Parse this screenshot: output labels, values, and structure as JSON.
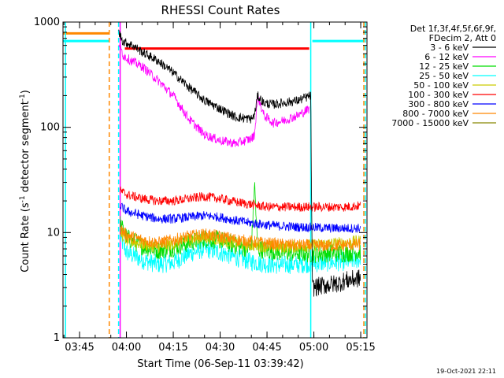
{
  "chart_data": {
    "type": "line",
    "title": "RHESSI Count Rates",
    "xlabel": "Start Time (06-Sep-11 03:39:42)",
    "ylabel_main": "Count Rate (s",
    "ylabel_sup": "-1",
    "ylabel_mid": " detector segment",
    "ylabel_end": ")",
    "y_scale": "log",
    "ylim": [
      1,
      1000
    ],
    "xlim": [
      "03:39:42",
      "05:17:00"
    ],
    "x_tick_labels": [
      "03:45",
      "04:00",
      "04:15",
      "04:30",
      "04:45",
      "05:00",
      "05:15"
    ],
    "y_tick_labels": [
      "1",
      "10",
      "100",
      "1000"
    ],
    "legend_header": [
      "Det 1f,3f,4f,5f,6f,9f,",
      "FDecim 2, Att 0"
    ],
    "legend_position": "top-right",
    "grid": false,
    "timestamp": "19-Oct-2021 22:11",
    "series": [
      {
        "name": "3 - 6 keV",
        "color": "#000000",
        "x": [
          "03:57:30",
          "03:59",
          "04:02",
          "04:05",
          "04:10",
          "04:15",
          "04:20",
          "04:25",
          "04:30",
          "04:35",
          "04:40",
          "04:41",
          "04:42",
          "04:44",
          "04:47",
          "04:50",
          "04:55",
          "04:59:00",
          "04:59:30",
          "05:02",
          "05:05",
          "05:08",
          "05:10",
          "05:13",
          "05:15"
        ],
        "values": [
          800,
          650,
          600,
          520,
          430,
          330,
          240,
          180,
          150,
          125,
          120,
          130,
          200,
          170,
          165,
          170,
          180,
          200,
          3.0,
          3.1,
          3.2,
          3.3,
          3.5,
          3.6,
          3.7
        ]
      },
      {
        "name": "6 - 12 keV",
        "color": "#ff00ff",
        "x": [
          "03:57:30",
          "03:59",
          "04:02",
          "04:05",
          "04:10",
          "04:15",
          "04:20",
          "04:25",
          "04:30",
          "04:35",
          "04:40",
          "04:41",
          "04:42",
          "04:44",
          "04:47",
          "04:50",
          "04:55",
          "04:58:30"
        ],
        "values": [
          650,
          480,
          420,
          380,
          280,
          200,
          120,
          85,
          75,
          70,
          78,
          85,
          200,
          130,
          110,
          115,
          130,
          150
        ]
      },
      {
        "name": "12 - 25 keV",
        "color": "#00dd00",
        "x": [
          "03:58:00",
          "04:00",
          "04:05",
          "04:10",
          "04:15",
          "04:20",
          "04:25",
          "04:30",
          "04:35",
          "04:40",
          "04:41",
          "04:42",
          "04:45",
          "04:50",
          "04:55",
          "05:00",
          "05:05",
          "05:10",
          "05:15"
        ],
        "values": [
          12,
          9,
          7.5,
          6.8,
          7.2,
          8,
          8.8,
          8.5,
          7.5,
          7,
          30,
          7,
          6.8,
          6.5,
          6.4,
          6.3,
          6.4,
          6.4,
          6.6
        ]
      },
      {
        "name": "25 - 50 keV",
        "color": "#00ffff",
        "x": [
          "03:58:00",
          "04:00",
          "04:05",
          "04:10",
          "04:15",
          "04:20",
          "04:25",
          "04:30",
          "04:35",
          "04:40",
          "04:45",
          "04:50",
          "04:55",
          "05:00",
          "05:05",
          "05:10",
          "05:15"
        ],
        "values": [
          9,
          6.5,
          5.5,
          5.0,
          5.2,
          6.3,
          7.0,
          6.5,
          5.8,
          5.3,
          5.0,
          4.9,
          5.0,
          5.1,
          5.2,
          5.3,
          5.6
        ]
      },
      {
        "name": "50 - 100 keV",
        "color": "#cccc00",
        "x": [
          "03:58:00",
          "04:00",
          "04:05",
          "04:10",
          "04:15",
          "04:20",
          "04:25",
          "04:30",
          "04:35",
          "04:40",
          "04:45",
          "04:50",
          "04:55",
          "05:00",
          "05:05",
          "05:10",
          "05:15"
        ],
        "values": [
          10,
          8.5,
          7.8,
          7.3,
          7.8,
          8.6,
          9.0,
          8.6,
          8.0,
          7.6,
          7.4,
          7.3,
          7.4,
          7.6,
          7.8,
          8.0,
          8.3
        ]
      },
      {
        "name": "100 - 300 keV",
        "color": "#ff0000",
        "x": [
          "03:58:00",
          "04:00",
          "04:05",
          "04:10",
          "04:15",
          "04:20",
          "04:25",
          "04:30",
          "04:35",
          "04:40",
          "04:45",
          "04:50",
          "04:55",
          "05:00",
          "05:05",
          "05:10",
          "05:15"
        ],
        "values": [
          25,
          23,
          21,
          20,
          20,
          21,
          22,
          21,
          19.5,
          18.5,
          17.5,
          17.5,
          17.5,
          17.5,
          17.5,
          17.5,
          18
        ]
      },
      {
        "name": "300 - 800 keV",
        "color": "#0000ff",
        "x": [
          "03:58:00",
          "04:00",
          "04:05",
          "04:10",
          "04:15",
          "04:20",
          "04:25",
          "04:30",
          "04:35",
          "04:40",
          "04:45",
          "04:50",
          "04:55",
          "05:00",
          "05:05",
          "05:10",
          "05:15"
        ],
        "values": [
          18,
          16,
          14.5,
          13.5,
          13.5,
          14,
          14.5,
          14,
          13,
          12.3,
          11.8,
          11.5,
          11.3,
          11.2,
          11,
          11,
          11
        ]
      },
      {
        "name": "800 - 7000 keV",
        "color": "#ff8800",
        "x": [
          "03:58:00",
          "04:00",
          "04:05",
          "04:10",
          "04:15",
          "04:20",
          "04:25",
          "04:30",
          "04:35",
          "04:40",
          "04:45",
          "04:50",
          "04:55",
          "05:00",
          "05:05",
          "05:10",
          "05:15"
        ],
        "values": [
          11,
          9.5,
          8.5,
          8,
          8.5,
          9.2,
          9.6,
          9.2,
          8.6,
          8.2,
          7.9,
          7.7,
          7.6,
          7.5,
          7.5,
          7.6,
          7.7
        ]
      },
      {
        "name": "7000 - 15000 keV",
        "color": "#888800",
        "x": [],
        "values": []
      }
    ],
    "state_bars": [
      {
        "color": "#ff8800",
        "x": [
          "03:39:42",
          "03:54:30"
        ],
        "value": 780
      },
      {
        "color": "#00ffff",
        "x": [
          "03:39:42",
          "03:54:30"
        ],
        "value": 660
      },
      {
        "color": "#ff0000",
        "x": [
          "03:59:30",
          "04:58:30"
        ],
        "value": 560
      },
      {
        "color": "#00ffff",
        "x": [
          "04:59:30",
          "05:16:00"
        ],
        "value": 660
      }
    ],
    "marker_lines": [
      {
        "color": "#00ffff",
        "style": "solid",
        "x": "03:40:30"
      },
      {
        "color": "#ff8800",
        "style": "dashed",
        "x": "03:54:30"
      },
      {
        "color": "#00ffff",
        "style": "dashed",
        "x": "03:57:30"
      },
      {
        "color": "#ff00ff",
        "style": "solid",
        "x": "03:58:00"
      },
      {
        "color": "#00ffff",
        "style": "solid",
        "x": "04:59:00"
      },
      {
        "color": "#ff8800",
        "style": "dashed",
        "x": "05:16:00"
      },
      {
        "color": "#00ffff",
        "style": "dashed",
        "x": "05:16:30"
      }
    ]
  }
}
